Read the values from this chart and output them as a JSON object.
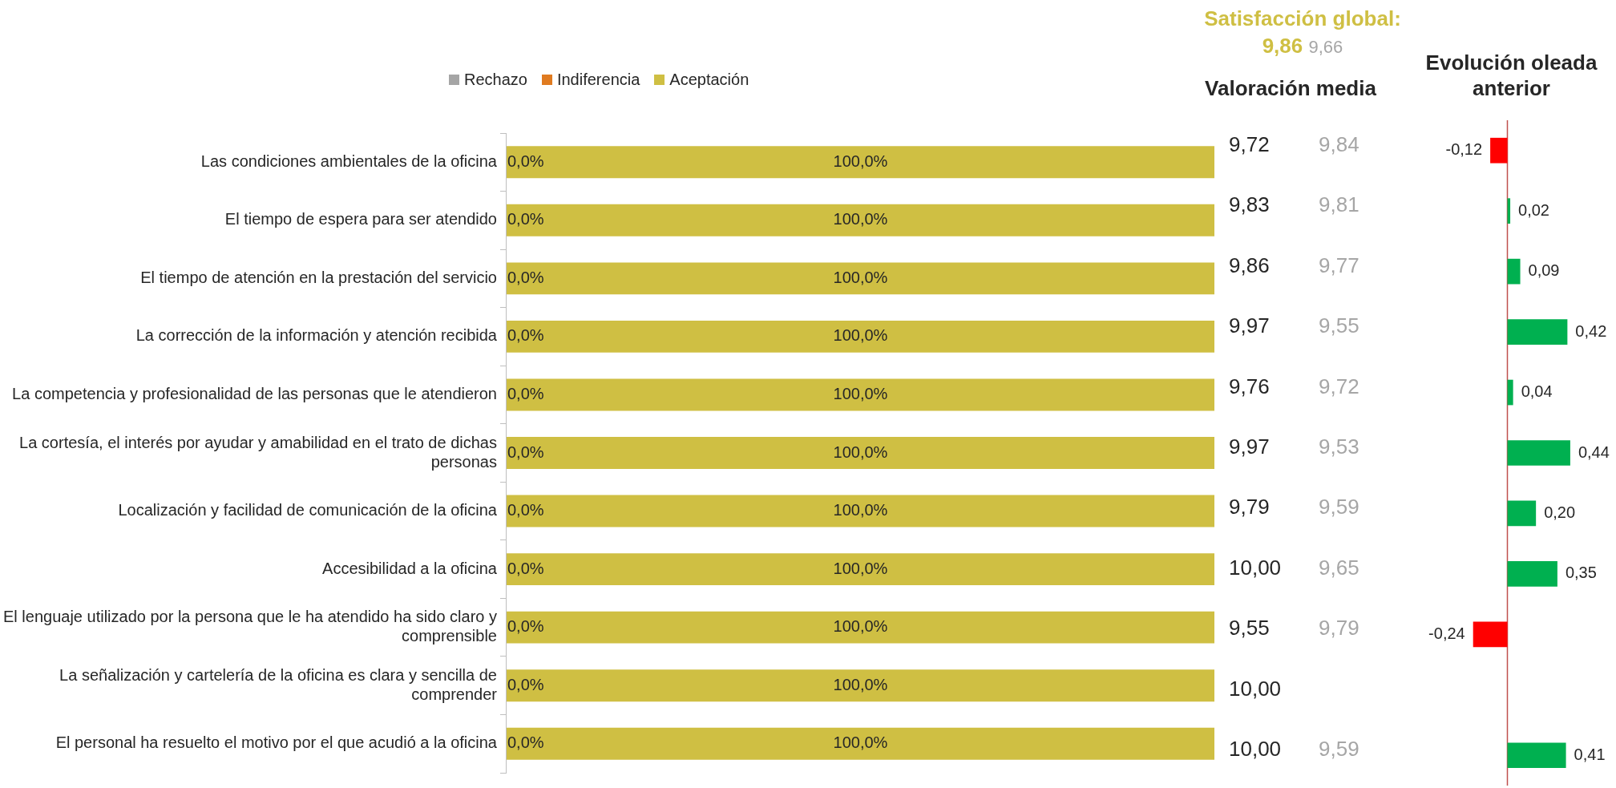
{
  "chart_data": [
    {
      "type": "bar",
      "orientation": "horizontal",
      "stacked": true,
      "legend": "top",
      "tick_labels": "y",
      "categories": [
        "Las condiciones ambientales de la oficina",
        "El tiempo de espera para ser atendido",
        "El tiempo de atención en la prestación del servicio",
        "La corrección de la información y atención recibida",
        "La competencia y profesionalidad de las personas que le atendieron",
        "La cortesía, el interés por ayudar y amabilidad en el trato de dichas personas",
        "Localización y facilidad de comunicación de la oficina",
        "Accesibilidad a la oficina",
        "El lenguaje utilizado por la persona que le ha atendido ha sido claro y comprensible",
        "La señalización y cartelería de la oficina es clara y sencilla de comprender",
        "El personal ha resuelto el motivo por el que acudió a la oficina"
      ],
      "series": [
        {
          "name": "Rechazo",
          "color": "#a5a5a5",
          "values": [
            0,
            0,
            0,
            0,
            0,
            0,
            0,
            0,
            0,
            0,
            0
          ],
          "value_labels": [
            "0,0%",
            "0,0%",
            "0,0%",
            "0,0%",
            "0,0%",
            "0,0%",
            "0,0%",
            "0,0%",
            "0,0%",
            "0,0%",
            "0,0%"
          ]
        },
        {
          "name": "Indiferencia",
          "color": "#e07b20",
          "values": [
            0,
            0,
            0,
            0,
            0,
            0,
            0,
            0,
            0,
            0,
            0
          ]
        },
        {
          "name": "Aceptación",
          "color": "#cfbf43",
          "values": [
            100,
            100,
            100,
            100,
            100,
            100,
            100,
            100,
            100,
            100,
            100
          ],
          "value_labels": [
            "100,0%",
            "100,0%",
            "100,0%",
            "100,0%",
            "100,0%",
            "100,0%",
            "100,0%",
            "100,0%",
            "100,0%",
            "100,0%",
            "100,0%"
          ]
        }
      ]
    },
    {
      "type": "other",
      "title": "Valoración media",
      "annotations": [
        "Satisfacción global:",
        "9,86",
        "9,66",
        "9,72",
        "9,83",
        "9,86",
        "9,97",
        "9,76",
        "9,97",
        "9,79",
        "10,00",
        "9,55",
        "10,00",
        "10,00",
        "9,84",
        "9,81",
        "9,77",
        "9,55",
        "9,72",
        "9,53",
        "9,59",
        "9,65",
        "9,79",
        "9,59"
      ]
    },
    {
      "type": "bar",
      "orientation": "horizontal",
      "title": "Evolución oleada anterior",
      "tick_labels": false,
      "ref_lines": [
        {
          "axis": "x",
          "value": 0,
          "color": "#c0504d"
        }
      ],
      "categories": [
        null,
        null,
        null,
        null,
        null,
        null,
        null,
        null,
        null,
        null,
        null
      ],
      "values": [
        -0.12,
        0.02,
        0.09,
        0.42,
        0.04,
        0.44,
        0.2,
        0.35,
        -0.24,
        null,
        0.41
      ],
      "colors": [
        "#ff0000",
        "#00b050",
        "#00b050",
        "#00b050",
        "#00b050",
        "#00b050",
        "#00b050",
        "#00b050",
        "#ff0000",
        null,
        "#00b050"
      ],
      "value_labels": [
        "-0,12",
        "0,02",
        "0,09",
        "0,42",
        "0,04",
        "0,44",
        "0,20",
        "0,35",
        "-0,24",
        null,
        "0,41"
      ]
    }
  ]
}
